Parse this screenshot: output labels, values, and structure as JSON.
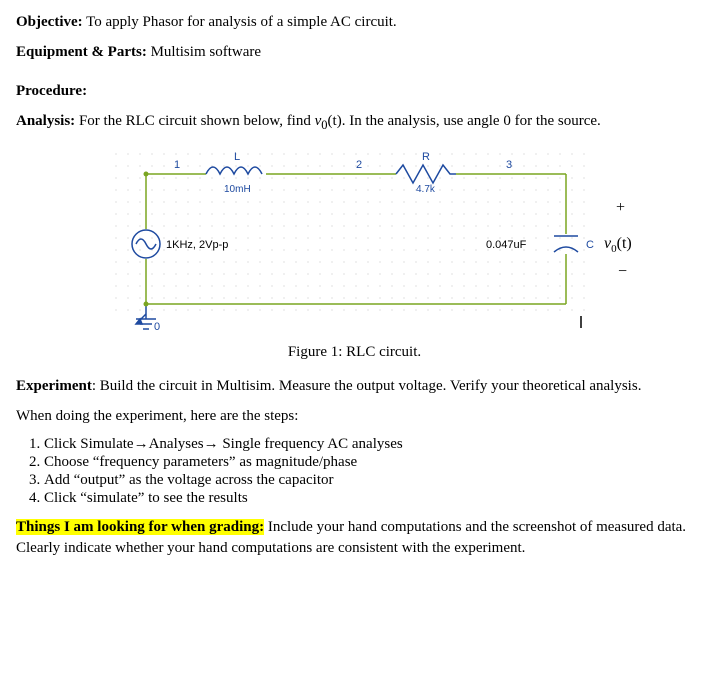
{
  "objective_label": "Objective:",
  "objective_text": " To apply Phasor for analysis of a simple AC circuit.",
  "equipment_label": "Equipment & Parts:",
  "equipment_text": " Multisim software",
  "procedure_label": "Procedure:",
  "analysis_label": "Analysis:",
  "analysis_text_1": " For the RLC circuit shown below, find ",
  "analysis_vo": "v",
  "analysis_vo_sub": "0",
  "analysis_vo_t": "(t)",
  "analysis_text_2": ". In the analysis, use angle 0 for the source.",
  "figure_caption": "Figure 1: RLC circuit.",
  "experiment_label": "Experiment",
  "experiment_text": ": Build the circuit in Multisim. Measure the output voltage. Verify your theoretical analysis.",
  "steps_intro": "When doing the experiment, here are the steps:",
  "steps": [
    "Click  Simulate→Analyses→ Single frequency AC analyses",
    "Choose “frequency parameters” as magnitude/phase",
    "Add “output” as the voltage across the capacitor",
    "Click “simulate” to see the results"
  ],
  "grading_label": "Things I am looking for when grading:",
  "grading_text": " Include your hand computations and the screenshot of measured data. Clearly indicate whether your hand computations are consistent with the experiment.",
  "circuit": {
    "source_label": "1KHz, 2Vp-p",
    "L_label": "L",
    "L_value": "10mH",
    "R_label": "R",
    "R_value": "4.7k",
    "C_label": "C",
    "C_value": "0.047uF",
    "output_plus": "+",
    "output_minus": "−",
    "output_v": "v",
    "output_sub": "0",
    "output_t": "(t)",
    "node1": "1",
    "node2": "2",
    "node3": "3",
    "gnd": "0",
    "colors": {
      "wire": "#7aa521",
      "dotgrid": "#c9c9c9",
      "component": "#1e4aa0",
      "text": "#1e4aa0",
      "black": "#000000"
    }
  }
}
